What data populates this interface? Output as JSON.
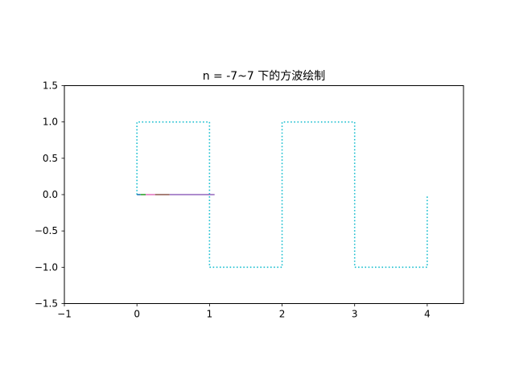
{
  "chart_data": {
    "type": "line",
    "title": "n = -7~7 下的方波绘制",
    "xlabel": "",
    "ylabel": "",
    "xlim": [
      -1,
      4.5
    ],
    "ylim": [
      -1.5,
      1.5
    ],
    "xticks": [
      -1,
      0,
      1,
      2,
      3,
      4
    ],
    "xtick_labels": [
      "−1",
      "0",
      "1",
      "2",
      "3",
      "4"
    ],
    "yticks": [
      -1.5,
      -1.0,
      -0.5,
      0.0,
      0.5,
      1.0,
      1.5
    ],
    "ytick_labels": [
      "−1.5",
      "−1.0",
      "−0.5",
      "0.0",
      "0.5",
      "1.0",
      "1.5"
    ],
    "grid": false,
    "legend": "none",
    "series": [
      {
        "style": "dotted",
        "color": "#17becf",
        "x": [
          0,
          0,
          1,
          1,
          2,
          2,
          3,
          3,
          4,
          4
        ],
        "y": [
          0,
          1,
          1,
          -1,
          -1,
          1,
          1,
          -1,
          -1,
          0
        ]
      },
      {
        "style": "solid",
        "color": "#1f77b4",
        "x": [
          0,
          0.05
        ],
        "y": [
          0,
          0
        ]
      },
      {
        "style": "solid",
        "color": "#2ca02c",
        "x": [
          0.05,
          0.12
        ],
        "y": [
          0,
          0
        ]
      },
      {
        "style": "solid",
        "color": "#e377c2",
        "x": [
          0.12,
          0.25
        ],
        "y": [
          0,
          0
        ]
      },
      {
        "style": "solid",
        "color": "#8c564b",
        "x": [
          0.25,
          0.45
        ],
        "y": [
          0,
          0
        ]
      },
      {
        "style": "solid",
        "color": "#9467bd",
        "x": [
          0.45,
          1.07
        ],
        "y": [
          0,
          0
        ]
      }
    ]
  }
}
